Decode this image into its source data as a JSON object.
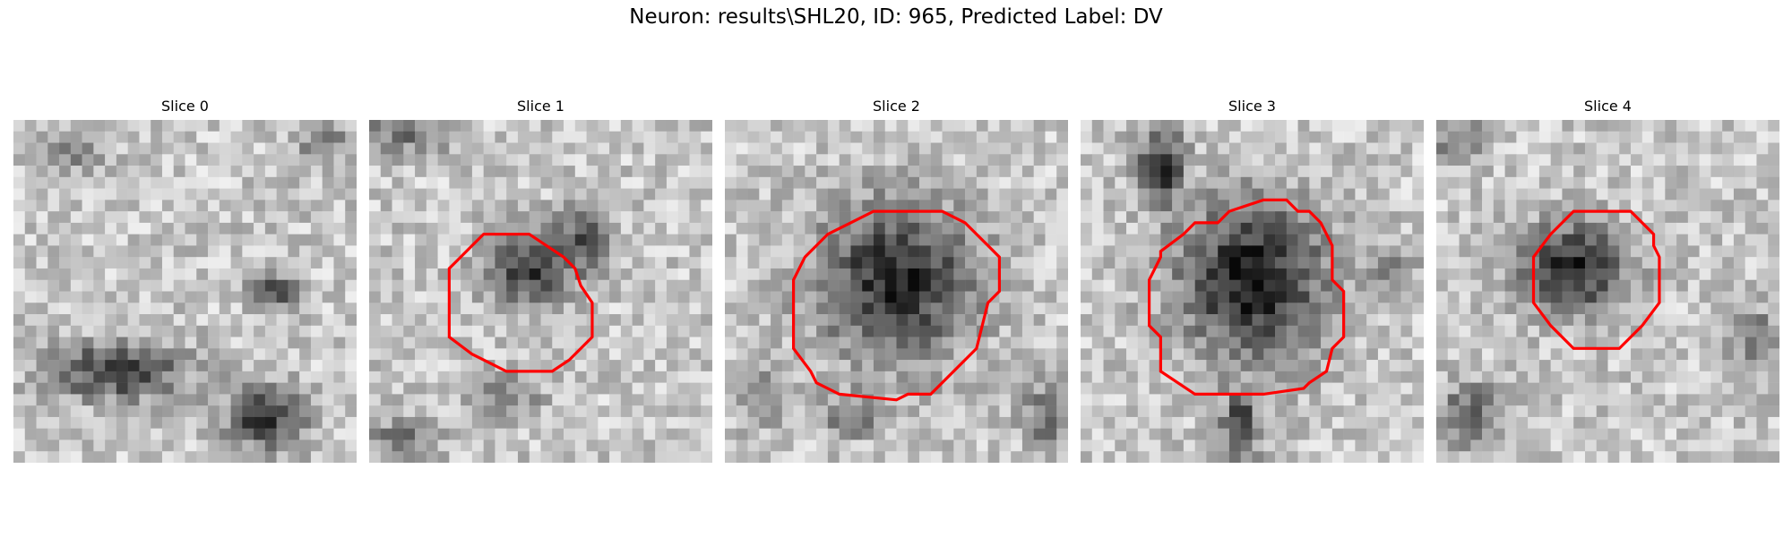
{
  "figure": {
    "title": "Neuron: results\\SHL20, ID: 965, Predicted Label: DV",
    "contour_color": "#ff0000",
    "colormap": "gray",
    "panels": [
      {
        "title": "Slice 0",
        "has_contour": false
      },
      {
        "title": "Slice 1",
        "has_contour": true
      },
      {
        "title": "Slice 2",
        "has_contour": true
      },
      {
        "title": "Slice 3",
        "has_contour": true
      },
      {
        "title": "Slice 4",
        "has_contour": true
      }
    ]
  }
}
